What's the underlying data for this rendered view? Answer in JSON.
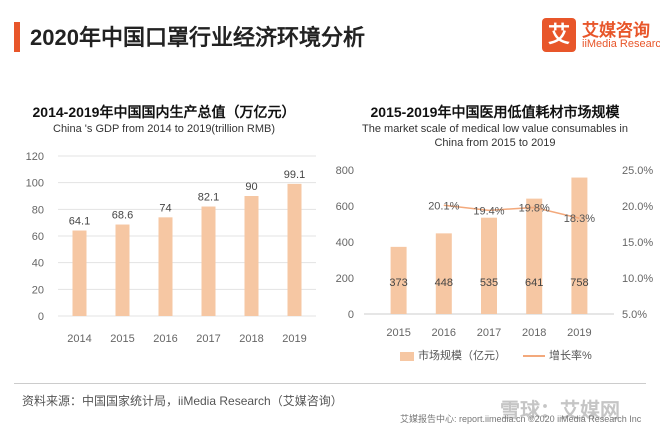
{
  "page": {
    "title": "2020年中国口罩行业经济环境分析",
    "logo_mark": "艾",
    "logo_cn": "艾媒咨询",
    "logo_en": "iiMedia Research",
    "source": "资料来源：中国国家统计局，iiMedia Research（艾媒咨询）",
    "footer": "艾媒报告中心: report.iimedia.cn ©2020 iiMedia Research Inc",
    "watermark": "雪球：艾媒网"
  },
  "colors": {
    "accent": "#e8562a",
    "bar": "#f6c7a3",
    "line": "#f3a97c"
  },
  "chart_data": [
    {
      "type": "bar",
      "title": "2014-2019年中国国内生产总值（万亿元）",
      "subtitle": "China 's GDP from 2014 to 2019(trillion RMB)",
      "categories": [
        "2014",
        "2015",
        "2016",
        "2017",
        "2018",
        "2019"
      ],
      "values": [
        64.1,
        68.6,
        74,
        82.1,
        90,
        99.1
      ],
      "value_labels": [
        "64.1",
        "68.6",
        "74",
        "82.1",
        "90",
        "99.1"
      ],
      "ylim": [
        0,
        120
      ],
      "yticks": [
        "0",
        "20",
        "40",
        "60",
        "80",
        "100",
        "120"
      ],
      "grid": true
    },
    {
      "type": "bar+line",
      "title": "2015-2019年中国医用低值耗材市场规模",
      "subtitle": "The market scale of medical low value consumables in China from 2015 to 2019",
      "categories": [
        "2015",
        "2016",
        "2017",
        "2018",
        "2019"
      ],
      "series": [
        {
          "name": "市场规模（亿元）",
          "type": "bar",
          "values": [
            373,
            448,
            535,
            641,
            758
          ],
          "value_labels": [
            "373",
            "448",
            "535",
            "641",
            "758"
          ]
        },
        {
          "name": "增长率%",
          "type": "line",
          "values": [
            null,
            20.1,
            19.4,
            19.8,
            18.3
          ],
          "value_labels": [
            "",
            "20.1%",
            "19.4%",
            "19.8%",
            "18.3%"
          ]
        }
      ],
      "ylim_left": [
        0,
        800
      ],
      "yticks_left": [
        "0",
        "200",
        "400",
        "600",
        "800"
      ],
      "ylim_right": [
        5,
        25
      ],
      "yticks_right": [
        "5.0%",
        "10.0%",
        "15.0%",
        "20.0%",
        "25.0%"
      ],
      "legend_position": "bottom",
      "grid": false
    }
  ]
}
